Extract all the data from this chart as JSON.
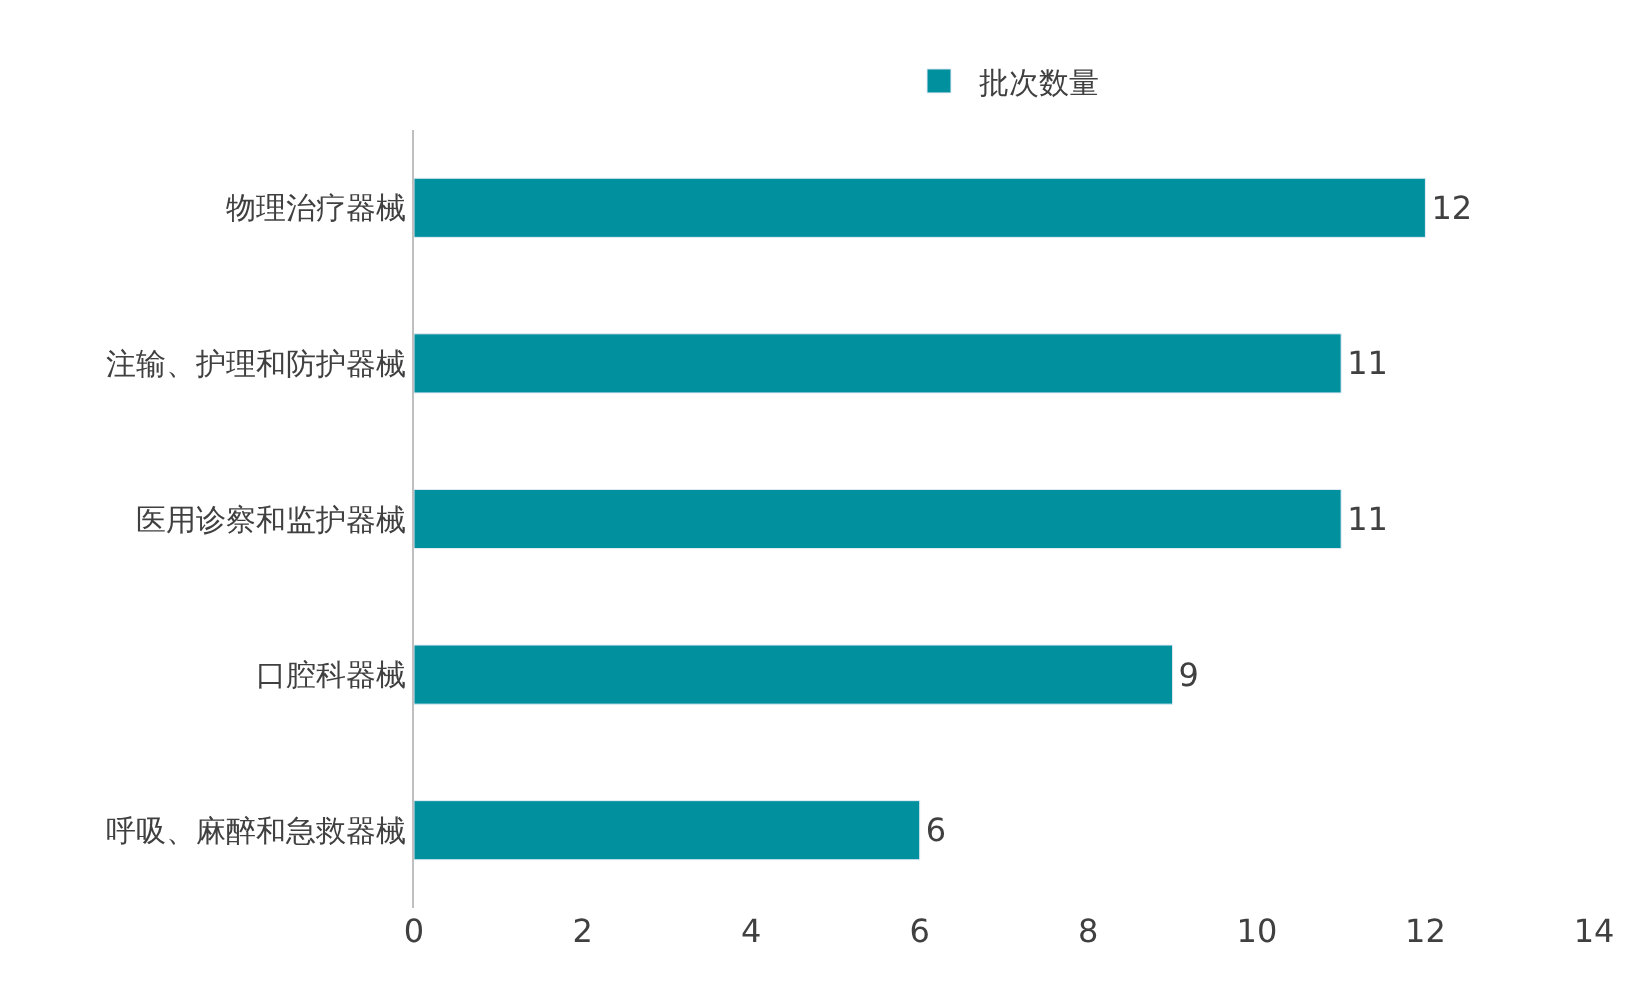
{
  "chart_data": {
    "type": "bar",
    "orientation": "horizontal",
    "categories": [
      "物理治疗器械",
      "注输、护理和防护器械",
      "医用诊察和监护器械",
      "口腔科器械",
      "呼吸、麻醉和急救器械"
    ],
    "series": [
      {
        "name": "批次数量",
        "color": "#00909e",
        "values": [
          12,
          11,
          11,
          9,
          6
        ]
      }
    ],
    "xlim": [
      0,
      14
    ],
    "xticks": [
      0,
      2,
      4,
      6,
      8,
      10,
      12,
      14
    ],
    "grid": false,
    "legend": "top",
    "data_labels": true
  }
}
